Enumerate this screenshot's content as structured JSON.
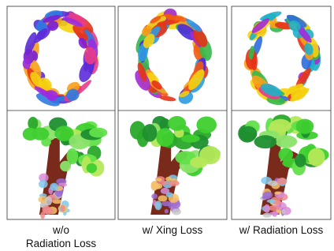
{
  "columns": [
    {
      "caption": [
        "w/o",
        "Radiation Loss"
      ]
    },
    {
      "caption": [
        "w/ Xing Loss"
      ]
    },
    {
      "caption": [
        "w/ Radiation Loss"
      ]
    }
  ]
}
